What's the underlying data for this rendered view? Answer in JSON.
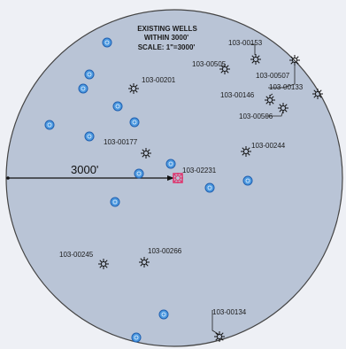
{
  "title": {
    "line1": "EXISTING WELLS",
    "line2": "WITHIN 3000'",
    "line3": "SCALE: 1\"=3000'"
  },
  "radius_label": "3000'",
  "colors": {
    "circle_fill": "#b9c4d6",
    "circle_stroke": "#444444",
    "marker_fill": "#4f9be0",
    "marker_stroke": "#1f5fb0",
    "center_well": "#e0306a",
    "star": "#111111"
  },
  "wells": [
    {
      "id": "well-103-00153",
      "label": "103-00153"
    },
    {
      "id": "well-103-00505",
      "label": "103-00505"
    },
    {
      "id": "well-103-00507",
      "label": "103-00507"
    },
    {
      "id": "well-103-00201",
      "label": "103-00201"
    },
    {
      "id": "well-103-00133",
      "label": "103-00133"
    },
    {
      "id": "well-103-00146",
      "label": "103-00146"
    },
    {
      "id": "well-103-00506",
      "label": "103-00506"
    },
    {
      "id": "well-103-00177",
      "label": "103-00177"
    },
    {
      "id": "well-103-00244",
      "label": "103-00244"
    },
    {
      "id": "well-103-02231",
      "label": "103-02231"
    },
    {
      "id": "well-103-00245",
      "label": "103-00245"
    },
    {
      "id": "well-103-00266",
      "label": "103-00266"
    },
    {
      "id": "well-103-00134",
      "label": "103-00134"
    }
  ],
  "other_wells_count": 17
}
